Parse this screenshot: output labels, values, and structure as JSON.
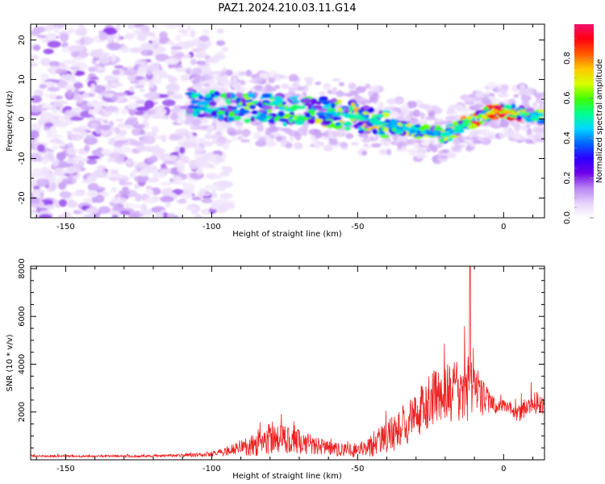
{
  "title": "PAZ1.2024.210.03.11.G14",
  "chart_data": [
    {
      "type": "heatmap",
      "xlabel": "Height of straight line (km)",
      "ylabel": "Frequency (Hz)",
      "xlim": [
        -162,
        14
      ],
      "ylim": [
        -25,
        24
      ],
      "xticks": [
        -150,
        -100,
        -50,
        0
      ],
      "yticks": [
        -20,
        -10,
        0,
        10,
        20
      ],
      "colorbar": {
        "label": "Normalized spectral amplitude",
        "range": [
          0,
          0.97
        ],
        "ticks": [
          "0.0",
          "0.2",
          "0.4",
          "0.6",
          "0.8"
        ],
        "colormap": [
          "#ffffff",
          "#e6d2fb",
          "#b784f2",
          "#7000e8",
          "#2a00ff",
          "#0066ff",
          "#00d8ff",
          "#00ff90",
          "#40ff00",
          "#d8ff00",
          "#ffc800",
          "#ff5a00",
          "#ff0010",
          "#f0106e"
        ]
      },
      "ridge": {
        "x": [
          -105,
          -98,
          -90,
          -80,
          -70,
          -60,
          -50,
          -40,
          -30,
          -20,
          -15,
          -10,
          -5,
          0,
          5,
          10,
          14
        ],
        "frequency": [
          4,
          3.5,
          3,
          2.5,
          2,
          1.5,
          0.5,
          -1.5,
          -3,
          -4,
          -2,
          0,
          1.5,
          2,
          1.5,
          1,
          1
        ],
        "amplitude": [
          0.3,
          0.35,
          0.4,
          0.45,
          0.45,
          0.5,
          0.55,
          0.5,
          0.45,
          0.5,
          0.55,
          0.65,
          0.8,
          0.85,
          0.7,
          0.5,
          0.5
        ]
      },
      "noise_region_x": [
        -162,
        -100
      ]
    },
    {
      "type": "line",
      "xlabel": "Height of straight line (km)",
      "ylabel": "SNR (10 * v/v)",
      "xlim": [
        -162,
        14
      ],
      "ylim": [
        0,
        8100
      ],
      "xticks": [
        -150,
        -100,
        -50,
        0
      ],
      "yticks": [
        2000,
        4000,
        6000,
        8000
      ],
      "line_color": "#ee2020",
      "envelope": {
        "x": [
          -162,
          -140,
          -120,
          -105,
          -100,
          -95,
          -90,
          -85,
          -80,
          -75,
          -70,
          -65,
          -60,
          -55,
          -50,
          -45,
          -40,
          -35,
          -30,
          -25,
          -20,
          -15,
          -12,
          -10,
          -8,
          -5,
          -2,
          0,
          3,
          5,
          8,
          11,
          14
        ],
        "mean": [
          150,
          150,
          160,
          200,
          250,
          350,
          500,
          700,
          900,
          850,
          750,
          600,
          500,
          400,
          400,
          600,
          900,
          1400,
          1900,
          2500,
          2800,
          2900,
          3100,
          3000,
          2700,
          2400,
          2200,
          2300,
          2100,
          1900,
          2200,
          2400,
          2300
        ],
        "spread": [
          40,
          40,
          45,
          80,
          110,
          200,
          350,
          550,
          700,
          600,
          500,
          400,
          300,
          250,
          300,
          500,
          700,
          900,
          1000,
          1100,
          1200,
          1300,
          1500,
          1200,
          900,
          500,
          300,
          250,
          300,
          350,
          450,
          500,
          450
        ]
      },
      "peak": {
        "x": -11.5,
        "y": 8100
      }
    }
  ]
}
